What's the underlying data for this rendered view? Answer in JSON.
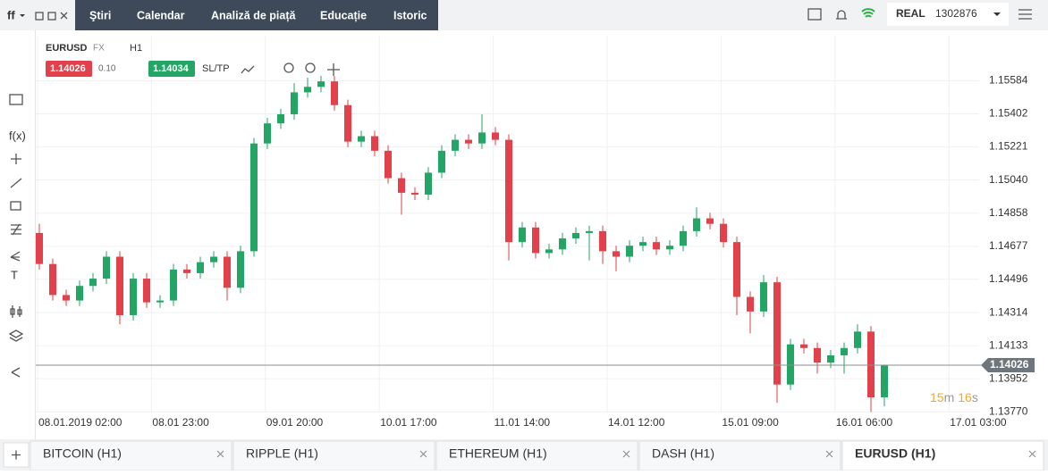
{
  "topbar": {
    "logo": "ff",
    "nav": [
      "Ştiri",
      "Calendar",
      "Analiză de piață",
      "Educație",
      "Istoric"
    ],
    "account_type": "REAL",
    "account_id": "1302876"
  },
  "toolbar": {
    "symbol": "EURUSD",
    "market": "FX",
    "interval": "H1",
    "bid": "1.14026",
    "spread": "0.10",
    "ask": "1.14034",
    "sltp": "SL/TP",
    "fx": "f(x)",
    "text_tool": "T"
  },
  "timer": [
    "15",
    "m",
    "16",
    "s"
  ],
  "tabs": [
    "BITCOIN (H1)",
    "RIPPLE (H1)",
    "ETHEREUM (H1)",
    "DASH (H1)",
    "EURUSD (H1)"
  ],
  "chart_data": {
    "type": "candlestick",
    "up_color": "#22a565",
    "down_color": "#e2404a",
    "grid": true,
    "ylim": [
      1.1363,
      1.1583
    ],
    "yticks": [
      1.15584,
      1.15402,
      1.15221,
      {
        "value": 1.1504,
        "label": "1.15040"
      },
      1.14858,
      1.14677,
      1.14496,
      1.14314,
      1.14133,
      1.13952,
      {
        "value": 1.1377,
        "label": "1.13770"
      }
    ],
    "x_labels": [
      "08.01.2019 02:00",
      "08.01 23:00",
      "09.01 20:00",
      "10.01 17:00",
      "11.01 14:00",
      "14.01 12:00",
      "15.01 09:00",
      "16.01 06:00",
      "17.01 03:00"
    ],
    "last_price": 1.14026,
    "candles": [
      [
        1.1475,
        1.148,
        1.1455,
        1.1458
      ],
      [
        1.1458,
        1.1461,
        1.1438,
        1.1441
      ],
      [
        1.1441,
        1.1444,
        1.1435,
        1.1438
      ],
      [
        1.1438,
        1.1449,
        1.1435,
        1.1446
      ],
      [
        1.1446,
        1.1453,
        1.1443,
        1.145
      ],
      [
        1.145,
        1.1465,
        1.1447,
        1.1462
      ],
      [
        1.1462,
        1.1465,
        1.1425,
        1.143
      ],
      [
        1.143,
        1.1453,
        1.1427,
        1.145
      ],
      [
        1.145,
        1.1453,
        1.1434,
        1.1437
      ],
      [
        1.1437,
        1.1441,
        1.1434,
        1.1438
      ],
      [
        1.1438,
        1.1458,
        1.1435,
        1.1455
      ],
      [
        1.1455,
        1.1458,
        1.145,
        1.1453
      ],
      [
        1.1453,
        1.1462,
        1.145,
        1.1459
      ],
      [
        1.1459,
        1.1465,
        1.1456,
        1.1462
      ],
      [
        1.1462,
        1.1465,
        1.1438,
        1.1445
      ],
      [
        1.1445,
        1.1468,
        1.1442,
        1.1465
      ],
      [
        1.1465,
        1.1527,
        1.1462,
        1.1524
      ],
      [
        1.1524,
        1.1538,
        1.1521,
        1.1535
      ],
      [
        1.1535,
        1.1543,
        1.1532,
        1.154
      ],
      [
        1.154,
        1.1557,
        1.1537,
        1.1552
      ],
      [
        1.1552,
        1.156,
        1.1549,
        1.1555
      ],
      [
        1.1555,
        1.1561,
        1.1552,
        1.1558
      ],
      [
        1.1558,
        1.1561,
        1.1542,
        1.1545
      ],
      [
        1.1545,
        1.1548,
        1.1522,
        1.1525
      ],
      [
        1.1525,
        1.1531,
        1.1522,
        1.1528
      ],
      [
        1.1528,
        1.1531,
        1.1517,
        1.152
      ],
      [
        1.152,
        1.1523,
        1.1502,
        1.1505
      ],
      [
        1.1505,
        1.1508,
        1.1485,
        1.1497
      ],
      [
        1.1497,
        1.15,
        1.1493,
        1.1496
      ],
      [
        1.1496,
        1.1511,
        1.1493,
        1.1508
      ],
      [
        1.1508,
        1.1523,
        1.1505,
        1.152
      ],
      [
        1.152,
        1.1529,
        1.1517,
        1.1526
      ],
      [
        1.1526,
        1.1529,
        1.1521,
        1.1524
      ],
      [
        1.1524,
        1.154,
        1.1521,
        1.153
      ],
      [
        1.153,
        1.1533,
        1.1523,
        1.1526
      ],
      [
        1.1526,
        1.1529,
        1.146,
        1.147
      ],
      [
        1.147,
        1.1481,
        1.1467,
        1.1478
      ],
      [
        1.1478,
        1.1481,
        1.1461,
        1.1464
      ],
      [
        1.1464,
        1.1469,
        1.1461,
        1.1466
      ],
      [
        1.1466,
        1.1475,
        1.1463,
        1.1472
      ],
      [
        1.1472,
        1.1478,
        1.1469,
        1.1475
      ],
      [
        1.1475,
        1.1479,
        1.146,
        1.1476
      ],
      [
        1.1476,
        1.1479,
        1.1458,
        1.1465
      ],
      [
        1.1465,
        1.1468,
        1.1454,
        1.1462
      ],
      [
        1.1462,
        1.1471,
        1.1459,
        1.1468
      ],
      [
        1.1468,
        1.1473,
        1.1465,
        1.147
      ],
      [
        1.147,
        1.1473,
        1.1463,
        1.1466
      ],
      [
        1.1466,
        1.1471,
        1.1463,
        1.1468
      ],
      [
        1.1468,
        1.1479,
        1.1465,
        1.1476
      ],
      [
        1.1476,
        1.1489,
        1.1473,
        1.1483
      ],
      [
        1.1483,
        1.1486,
        1.1477,
        1.148
      ],
      [
        1.148,
        1.1483,
        1.1467,
        1.147
      ],
      [
        1.147,
        1.1473,
        1.143,
        1.144
      ],
      [
        1.144,
        1.1443,
        1.142,
        1.1432
      ],
      [
        1.1432,
        1.1452,
        1.1429,
        1.1448
      ],
      [
        1.1448,
        1.1451,
        1.1382,
        1.1392
      ],
      [
        1.1392,
        1.1417,
        1.1389,
        1.1414
      ],
      [
        1.1414,
        1.1417,
        1.1409,
        1.1412
      ],
      [
        1.1412,
        1.1415,
        1.1398,
        1.1404
      ],
      [
        1.1404,
        1.1411,
        1.1401,
        1.1408
      ],
      [
        1.1408,
        1.1415,
        1.1398,
        1.1412
      ],
      [
        1.1412,
        1.1425,
        1.1409,
        1.1421
      ],
      [
        1.1421,
        1.1424,
        1.1377,
        1.1385
      ],
      [
        1.1385,
        1.14029,
        1.138,
        1.14026
      ]
    ]
  }
}
